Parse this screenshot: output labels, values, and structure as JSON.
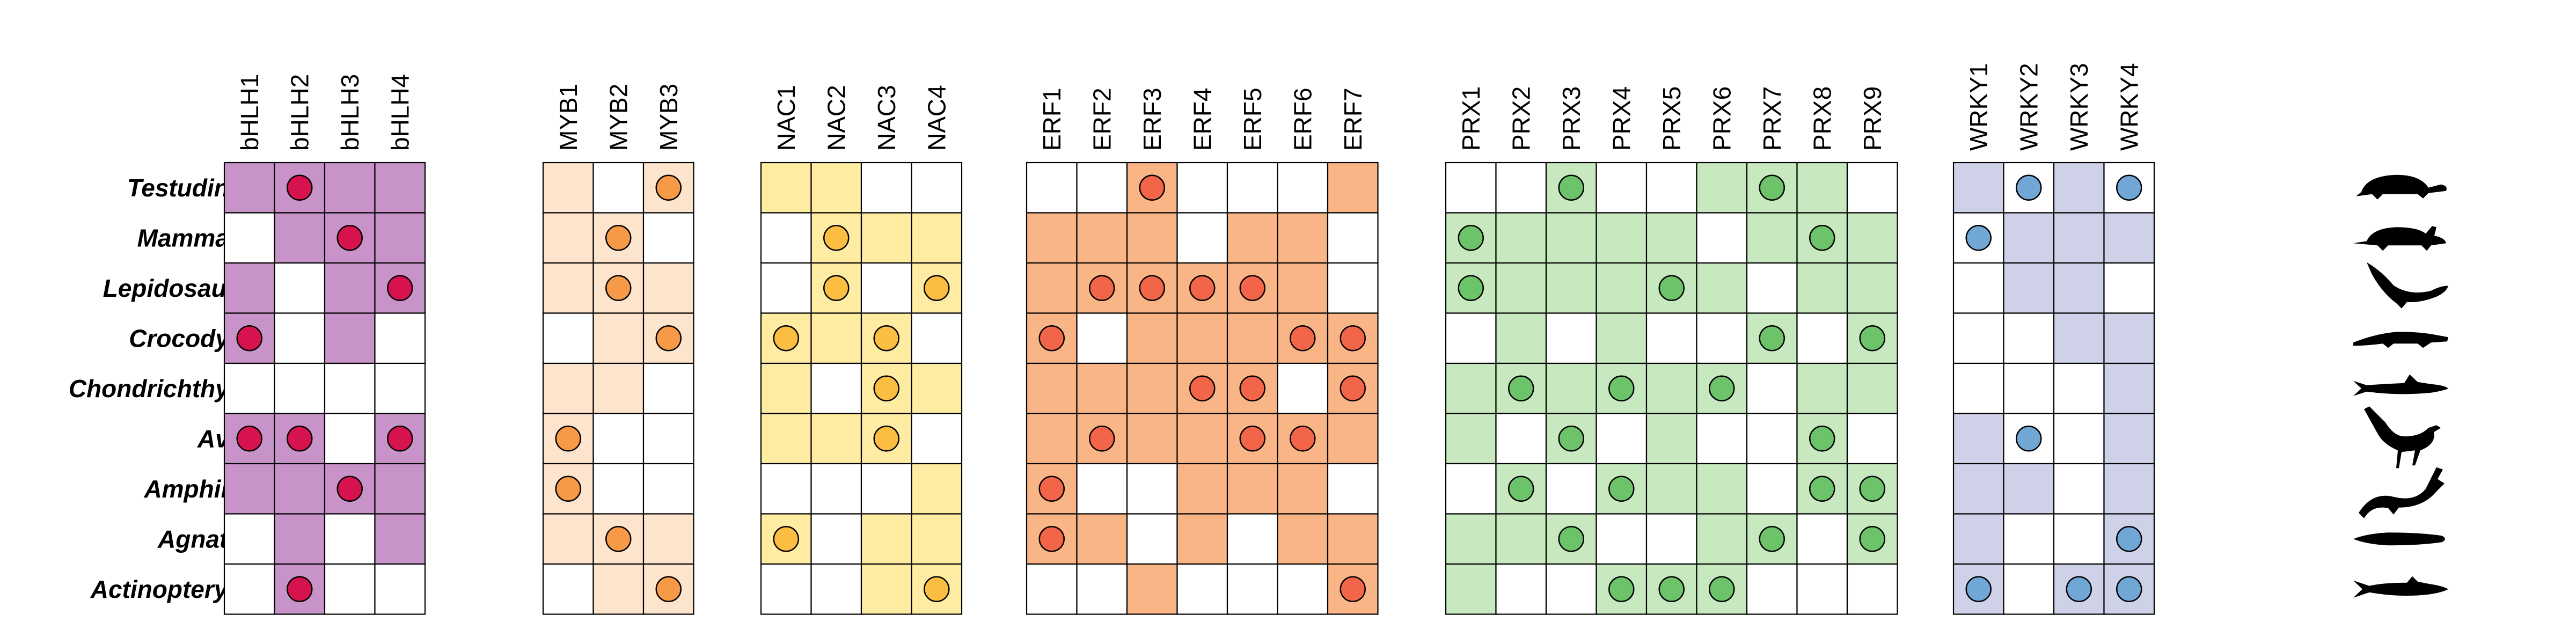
{
  "chart_data": {
    "type": "heatmap",
    "title": "",
    "rows": [
      "Testudines",
      "Mammalia",
      "Lepidosauria",
      "Crocodylia",
      "Chondrichthyes",
      "Aves",
      "Amphibia",
      "Agnatha",
      "Actinopterygii"
    ],
    "silhouettes": [
      "turtle-silhouette",
      "mammal-silhouette",
      "lizard-silhouette",
      "crocodile-silhouette",
      "shark-silhouette",
      "bird-silhouette",
      "salamander-silhouette",
      "lamprey-silhouette",
      "fish-silhouette"
    ],
    "panels": [
      {
        "name": "bHLH",
        "fill_color": "#c893c8",
        "dot_color": "#d6134f",
        "columns": [
          "bHLH1",
          "bHLH2",
          "bHLH3",
          "bHLH4"
        ],
        "shaded": [
          [
            1,
            1,
            1,
            1
          ],
          [
            0,
            1,
            1,
            1
          ],
          [
            1,
            0,
            1,
            1
          ],
          [
            1,
            0,
            1,
            0
          ],
          [
            0,
            0,
            0,
            0
          ],
          [
            1,
            1,
            0,
            1
          ],
          [
            1,
            1,
            1,
            1
          ],
          [
            0,
            1,
            0,
            1
          ],
          [
            0,
            1,
            0,
            0
          ]
        ],
        "dots": [
          [
            0,
            1,
            0,
            0
          ],
          [
            0,
            0,
            1,
            0
          ],
          [
            0,
            0,
            0,
            1
          ],
          [
            1,
            0,
            0,
            0
          ],
          [
            0,
            0,
            0,
            0
          ],
          [
            1,
            1,
            0,
            1
          ],
          [
            0,
            0,
            1,
            0
          ],
          [
            0,
            0,
            0,
            0
          ],
          [
            0,
            1,
            0,
            0
          ]
        ]
      },
      {
        "name": "MYB",
        "fill_color": "#fde4cc",
        "dot_color": "#f79a47",
        "columns": [
          "MYB1",
          "MYB2",
          "MYB3"
        ],
        "shaded": [
          [
            1,
            0,
            1
          ],
          [
            1,
            1,
            0
          ],
          [
            1,
            1,
            1
          ],
          [
            0,
            1,
            1
          ],
          [
            1,
            1,
            0
          ],
          [
            1,
            0,
            0
          ],
          [
            1,
            0,
            0
          ],
          [
            1,
            1,
            1
          ],
          [
            0,
            1,
            1
          ]
        ],
        "dots": [
          [
            0,
            0,
            1
          ],
          [
            0,
            1,
            0
          ],
          [
            0,
            1,
            0
          ],
          [
            0,
            0,
            1
          ],
          [
            0,
            0,
            0
          ],
          [
            1,
            0,
            0
          ],
          [
            1,
            0,
            0
          ],
          [
            0,
            1,
            0
          ],
          [
            0,
            0,
            1
          ]
        ]
      },
      {
        "name": "NAC",
        "fill_color": "#feeca2",
        "dot_color": "#fbbd42",
        "columns": [
          "NAC1",
          "NAC2",
          "NAC3",
          "NAC4"
        ],
        "shaded": [
          [
            1,
            1,
            0,
            0
          ],
          [
            0,
            1,
            1,
            1
          ],
          [
            0,
            1,
            0,
            1
          ],
          [
            1,
            1,
            1,
            0
          ],
          [
            1,
            0,
            1,
            1
          ],
          [
            1,
            1,
            1,
            0
          ],
          [
            0,
            0,
            0,
            1
          ],
          [
            1,
            0,
            1,
            1
          ],
          [
            0,
            0,
            1,
            1
          ]
        ],
        "dots": [
          [
            0,
            0,
            0,
            0
          ],
          [
            0,
            1,
            0,
            0
          ],
          [
            0,
            1,
            0,
            1
          ],
          [
            1,
            0,
            1,
            0
          ],
          [
            0,
            0,
            1,
            0
          ],
          [
            0,
            0,
            1,
            0
          ],
          [
            0,
            0,
            0,
            0
          ],
          [
            1,
            0,
            0,
            0
          ],
          [
            0,
            0,
            0,
            1
          ]
        ]
      },
      {
        "name": "ERF",
        "fill_color": "#f9b585",
        "dot_color": "#f26549",
        "columns": [
          "ERF1",
          "ERF2",
          "ERF3",
          "ERF4",
          "ERF5",
          "ERF6",
          "ERF7"
        ],
        "shaded": [
          [
            0,
            0,
            1,
            0,
            0,
            0,
            1
          ],
          [
            1,
            1,
            1,
            0,
            1,
            1,
            0
          ],
          [
            1,
            1,
            1,
            1,
            1,
            1,
            0
          ],
          [
            1,
            0,
            1,
            1,
            1,
            1,
            1
          ],
          [
            1,
            1,
            1,
            1,
            1,
            0,
            1
          ],
          [
            1,
            1,
            1,
            1,
            1,
            1,
            1
          ],
          [
            1,
            0,
            0,
            1,
            1,
            1,
            0
          ],
          [
            1,
            1,
            0,
            1,
            0,
            1,
            1
          ],
          [
            0,
            0,
            1,
            0,
            0,
            0,
            1
          ]
        ],
        "dots": [
          [
            0,
            0,
            1,
            0,
            0,
            0,
            0
          ],
          [
            0,
            0,
            0,
            0,
            0,
            0,
            0
          ],
          [
            0,
            1,
            1,
            1,
            1,
            0,
            0
          ],
          [
            1,
            0,
            0,
            0,
            0,
            1,
            1
          ],
          [
            0,
            0,
            0,
            1,
            1,
            0,
            1
          ],
          [
            0,
            1,
            0,
            0,
            1,
            1,
            0
          ],
          [
            1,
            0,
            0,
            0,
            0,
            0,
            0
          ],
          [
            1,
            0,
            0,
            0,
            0,
            0,
            0
          ],
          [
            0,
            0,
            0,
            0,
            0,
            0,
            1
          ]
        ]
      },
      {
        "name": "PRX",
        "fill_color": "#c8e9c0",
        "dot_color": "#6cc36a",
        "columns": [
          "PRX1",
          "PRX2",
          "PRX3",
          "PRX4",
          "PRX5",
          "PRX6",
          "PRX7",
          "PRX8",
          "PRX9"
        ],
        "shaded": [
          [
            0,
            0,
            1,
            0,
            0,
            1,
            1,
            1,
            0
          ],
          [
            1,
            1,
            1,
            1,
            1,
            0,
            1,
            1,
            1
          ],
          [
            1,
            1,
            1,
            1,
            1,
            1,
            0,
            1,
            1
          ],
          [
            0,
            1,
            0,
            1,
            0,
            0,
            1,
            0,
            1
          ],
          [
            1,
            1,
            1,
            1,
            1,
            1,
            0,
            1,
            1
          ],
          [
            1,
            0,
            1,
            0,
            1,
            0,
            0,
            1,
            0
          ],
          [
            0,
            1,
            0,
            1,
            1,
            1,
            0,
            1,
            1
          ],
          [
            1,
            1,
            1,
            0,
            0,
            1,
            1,
            0,
            1
          ],
          [
            1,
            0,
            0,
            1,
            1,
            1,
            0,
            0,
            0
          ]
        ],
        "dots": [
          [
            0,
            0,
            1,
            0,
            0,
            0,
            1,
            0,
            0
          ],
          [
            1,
            0,
            0,
            0,
            0,
            0,
            0,
            1,
            0
          ],
          [
            1,
            0,
            0,
            0,
            1,
            0,
            0,
            0,
            0
          ],
          [
            0,
            0,
            0,
            0,
            0,
            0,
            1,
            0,
            1
          ],
          [
            0,
            1,
            0,
            1,
            0,
            1,
            0,
            0,
            0
          ],
          [
            0,
            0,
            1,
            0,
            0,
            0,
            0,
            1,
            0
          ],
          [
            0,
            1,
            0,
            1,
            0,
            0,
            0,
            1,
            1
          ],
          [
            0,
            0,
            1,
            0,
            0,
            0,
            1,
            0,
            1
          ],
          [
            0,
            0,
            0,
            1,
            1,
            1,
            0,
            0,
            0
          ]
        ]
      },
      {
        "name": "WRKY",
        "fill_color": "#cfd1e8",
        "dot_color": "#70a7d4",
        "columns": [
          "WRKY1",
          "WRKY2",
          "WRKY3",
          "WRKY4"
        ],
        "shaded": [
          [
            1,
            0,
            1,
            0
          ],
          [
            0,
            1,
            1,
            1
          ],
          [
            0,
            1,
            1,
            0
          ],
          [
            0,
            0,
            1,
            1
          ],
          [
            0,
            0,
            0,
            1
          ],
          [
            1,
            0,
            0,
            1
          ],
          [
            1,
            1,
            0,
            1
          ],
          [
            1,
            0,
            0,
            1
          ],
          [
            1,
            0,
            1,
            1
          ]
        ],
        "dots": [
          [
            0,
            1,
            0,
            1
          ],
          [
            1,
            0,
            0,
            0
          ],
          [
            0,
            0,
            0,
            0
          ],
          [
            0,
            0,
            0,
            0
          ],
          [
            0,
            0,
            0,
            0
          ],
          [
            0,
            1,
            0,
            0
          ],
          [
            0,
            0,
            0,
            0
          ],
          [
            0,
            0,
            0,
            1
          ],
          [
            1,
            0,
            1,
            1
          ]
        ]
      }
    ]
  }
}
